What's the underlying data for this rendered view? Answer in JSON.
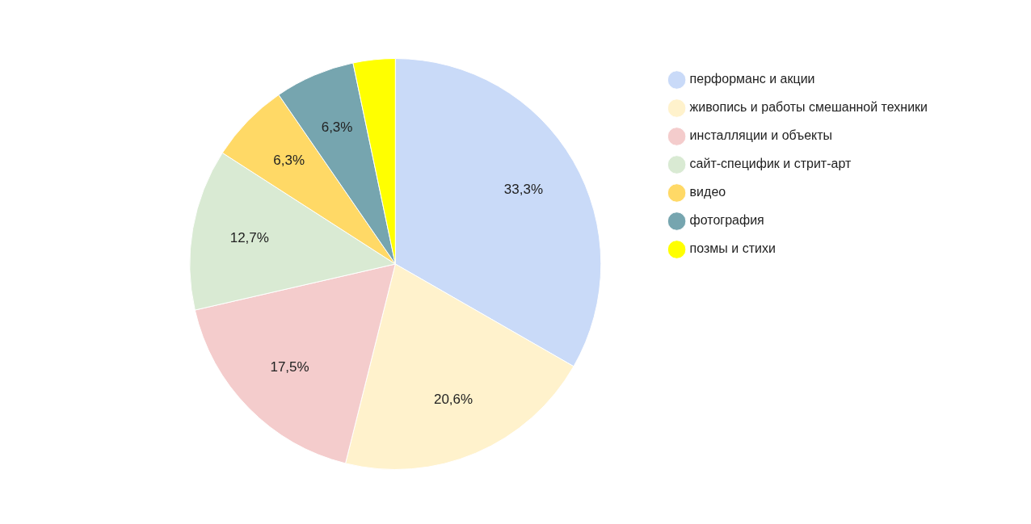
{
  "chart_data": {
    "type": "pie",
    "categories": [
      "перформанс и акции",
      "живопись и работы смешанной техники",
      "инсталляции и объекты",
      "сайт-специфик и стрит-арт",
      "видео",
      "фотография",
      "позмы и стихи"
    ],
    "values": [
      33.3,
      20.6,
      17.5,
      12.7,
      6.3,
      6.3,
      3.3
    ],
    "colors": [
      "#c9daf8",
      "#fff2cc",
      "#f4cccc",
      "#d9ead3",
      "#ffd966",
      "#76a5af",
      "#ffff00"
    ],
    "value_labels": [
      "33,3%",
      "20,6%",
      "17,5%",
      "12,7%",
      "6,3%",
      "6,3%",
      null
    ],
    "legend": "top right"
  }
}
